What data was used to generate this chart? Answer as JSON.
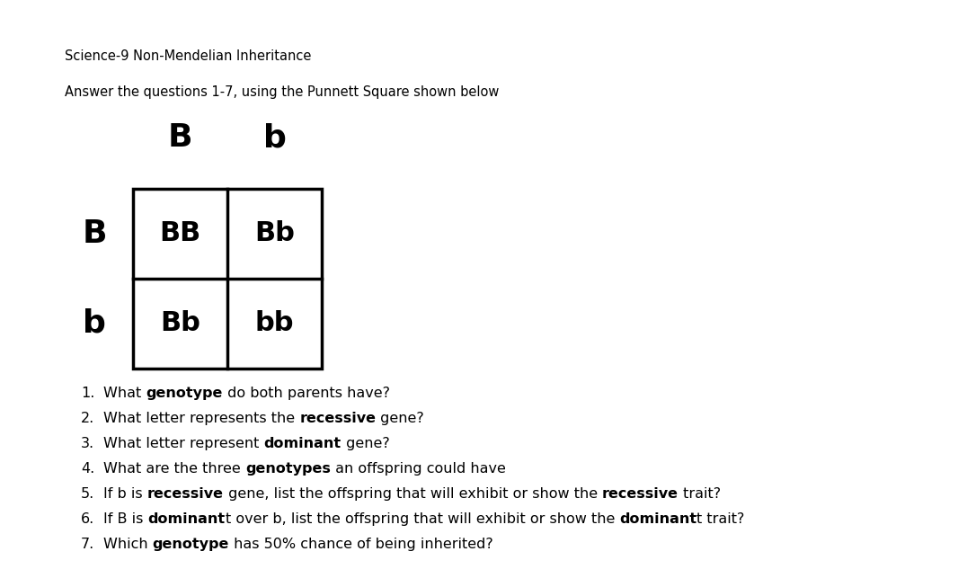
{
  "title": "Science-9 Non-Mendelian Inheritance",
  "subtitle": "Answer the questions 1-7, using the Punnett Square shown below",
  "background_color": "#ffffff",
  "text_color": "#000000",
  "col_headers": [
    "B",
    "b"
  ],
  "row_headers": [
    "B",
    "b"
  ],
  "cells": [
    [
      "BB",
      "Bb"
    ],
    [
      "Bb",
      "bb"
    ]
  ],
  "font_size_title": 10.5,
  "font_size_subtitle": 10.5,
  "font_size_headers": 26,
  "font_size_cells": 22,
  "font_size_questions": 11.5,
  "questions": [
    [
      [
        "What ",
        false
      ],
      [
        "genotype",
        true
      ],
      [
        " do both parents have?",
        false
      ]
    ],
    [
      [
        "What letter represents the ",
        false
      ],
      [
        "recessive",
        true
      ],
      [
        " gene?",
        false
      ]
    ],
    [
      [
        "What letter represent ",
        false
      ],
      [
        "dominant",
        true
      ],
      [
        " gene?",
        false
      ]
    ],
    [
      [
        "What are the three ",
        false
      ],
      [
        "genotypes",
        true
      ],
      [
        " an offspring could have",
        false
      ]
    ],
    [
      [
        "If b is ",
        false
      ],
      [
        "recessive",
        true
      ],
      [
        " gene, list the offspring that will exhibit or show the ",
        false
      ],
      [
        "recessive",
        true
      ],
      [
        " trait?",
        false
      ]
    ],
    [
      [
        "If B is ",
        false
      ],
      [
        "dominant",
        true
      ],
      [
        "t over b, list the offspring that will exhibit or show the ",
        false
      ],
      [
        "dominant",
        true
      ],
      [
        "t trait?",
        false
      ]
    ],
    [
      [
        "Which ",
        false
      ],
      [
        "genotype",
        true
      ],
      [
        " has 50% chance of being inherited?",
        false
      ]
    ]
  ]
}
